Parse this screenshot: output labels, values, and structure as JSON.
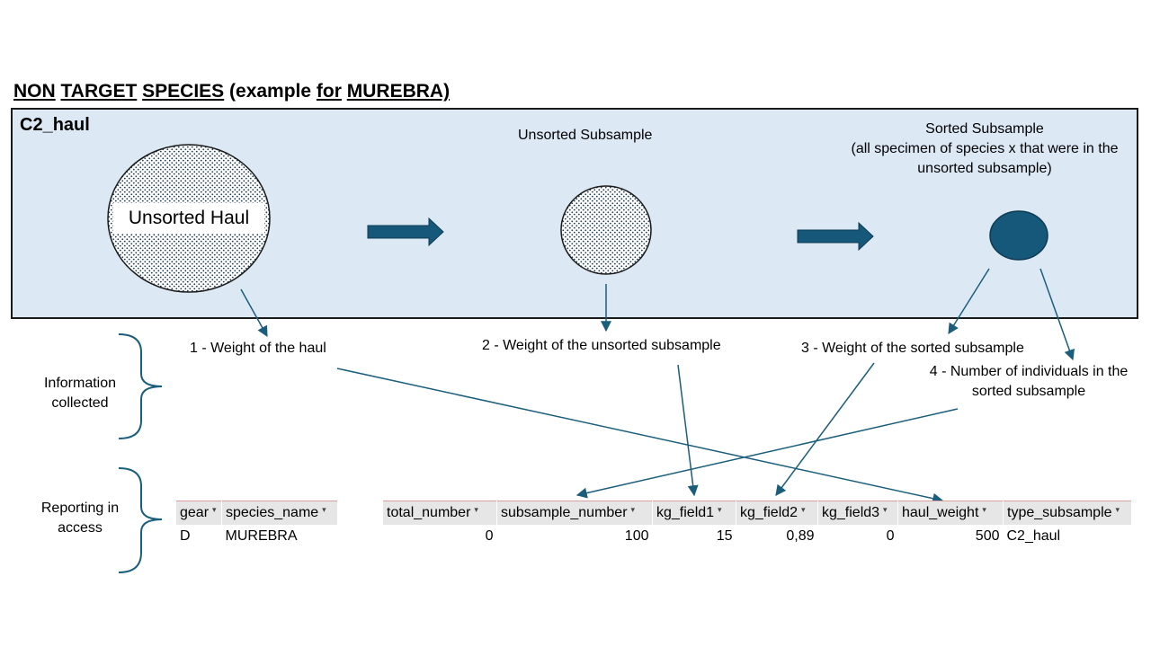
{
  "title": {
    "part1": "NON",
    "part2": "TARGET",
    "part3": "SPECIES",
    "part4": "(example",
    "part5": "for",
    "part6": "MUREBRA)"
  },
  "panel": {
    "label": "C2_haul",
    "unsorted_haul": "Unsorted Haul",
    "unsorted_subsample": "Unsorted Subsample",
    "sorted_subsample_title": "Sorted Subsample",
    "sorted_subsample_line2": "(all specimen of species x that were in the",
    "sorted_subsample_line3": "unsorted subsample)"
  },
  "info": {
    "label_line1": "Information",
    "label_line2": "collected",
    "item1": "1 - Weight of the haul",
    "item2": "2 - Weight of the unsorted subsample",
    "item3": "3 - Weight of the sorted subsample",
    "item4_line1": "4 - Number of individuals in the",
    "item4_line2": "sorted subsample"
  },
  "reporting": {
    "label_line1": "Reporting in",
    "label_line2": "access"
  },
  "table_left": {
    "headers": [
      "gear",
      "species_name"
    ],
    "row": [
      "D",
      "MUREBRA"
    ]
  },
  "table_right": {
    "headers": [
      "total_number",
      "subsample_number",
      "kg_field1",
      "kg_field2",
      "kg_field3",
      "haul_weight",
      "type_subsample"
    ],
    "row": [
      "0",
      "100",
      "15",
      "0,89",
      "0",
      "500",
      "C2_haul"
    ]
  },
  "colors": {
    "panel_bg": "#dce9f5",
    "arrow": "#1b5e7b",
    "dark_circle": "#15587a"
  }
}
